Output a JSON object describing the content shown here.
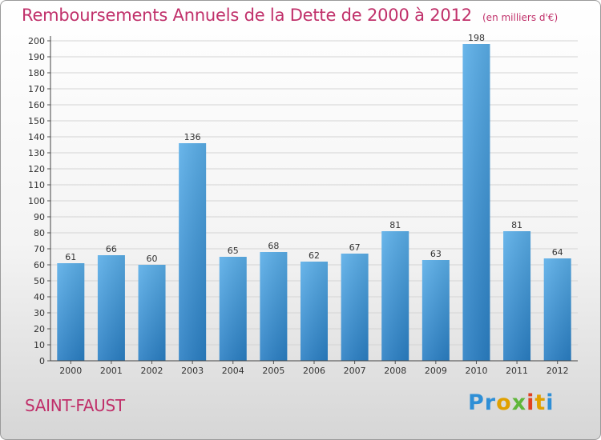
{
  "header": {
    "title": "Remboursements Annuels de la Dette de 2000 à 2012",
    "subtitle": "(en milliers d'€)"
  },
  "footer": {
    "commune": "SAINT-FAUST",
    "brand": "Proxiti"
  },
  "colors": {
    "accent_text": "#c0306a",
    "bar_top": "#5aaee8",
    "bar_bottom": "#2a7fc4"
  },
  "chart_data": {
    "type": "bar",
    "categories": [
      "2000",
      "2001",
      "2002",
      "2003",
      "2004",
      "2005",
      "2006",
      "2007",
      "2008",
      "2009",
      "2010",
      "2011",
      "2012"
    ],
    "values": [
      61,
      66,
      60,
      136,
      65,
      68,
      62,
      67,
      81,
      63,
      198,
      81,
      64
    ],
    "title": "Remboursements Annuels de la Dette de 2000 à 2012",
    "subtitle": "(en milliers d'€)",
    "xlabel": "",
    "ylabel": "",
    "ylim": [
      0,
      200
    ],
    "yticks": [
      0,
      10,
      20,
      30,
      40,
      50,
      60,
      70,
      80,
      90,
      100,
      110,
      120,
      130,
      140,
      150,
      160,
      170,
      180,
      190,
      200
    ],
    "grid": true,
    "legend": "none"
  }
}
